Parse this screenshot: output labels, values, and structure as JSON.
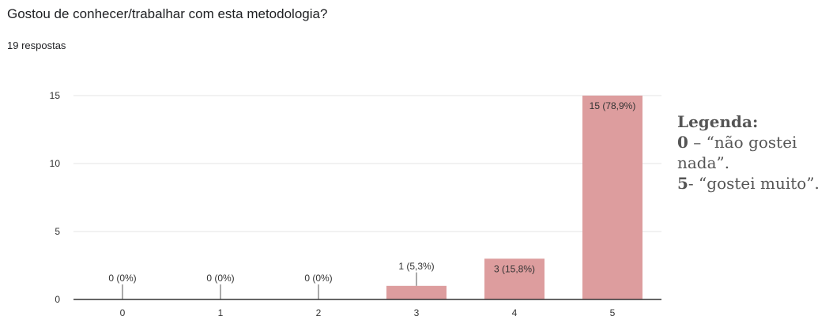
{
  "question": "Gostou de conhecer/trabalhar com esta metodologia?",
  "responses": "19 respostas",
  "colors": {
    "bar": "#dd9d9e",
    "grid": "#e6e6e6",
    "axis": "#333333"
  },
  "legend": {
    "title": "Legenda:",
    "line1_key": "0",
    "line1_text": " – “não gostei",
    "line2_text": "nada”.",
    "line3_key": "5",
    "line3_text": "- “gostei muito”."
  },
  "chart_data": {
    "type": "bar",
    "categories": [
      "0",
      "1",
      "2",
      "3",
      "4",
      "5"
    ],
    "values": [
      0,
      0,
      0,
      1,
      3,
      15
    ],
    "data_labels": [
      "0 (0%)",
      "0 (0%)",
      "0 (0%)",
      "1 (5,3%)",
      "3 (15,8%)",
      "15 (78,9%)"
    ],
    "yticks": [
      0,
      5,
      10,
      15
    ],
    "ylim": [
      0,
      15
    ],
    "grid": true,
    "title": "",
    "xlabel": "",
    "ylabel": ""
  }
}
